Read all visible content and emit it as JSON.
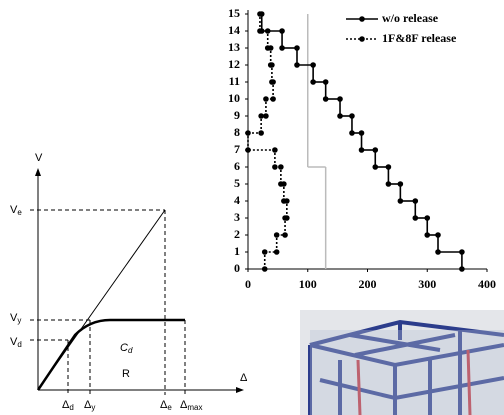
{
  "chart_data": {
    "type": "step-profile",
    "xlim": [
      0,
      400
    ],
    "xticks": [
      0,
      100,
      200,
      300,
      400
    ],
    "ylim": [
      0,
      15
    ],
    "yticks": [
      0,
      1,
      2,
      3,
      4,
      5,
      6,
      7,
      8,
      9,
      10,
      11,
      12,
      13,
      14,
      15
    ],
    "series": [
      {
        "name": "w/o release",
        "color": "#000000",
        "dash": "solid",
        "values": [
          358,
          318,
          300,
          280,
          255,
          235,
          213,
          190,
          174,
          154,
          130,
          109,
          82,
          57,
          23
        ]
      },
      {
        "name": "1F&8F release",
        "color": "#000000",
        "dash": "dotted",
        "values": [
          28,
          48,
          62,
          65,
          60,
          55,
          45,
          0,
          22,
          30,
          42,
          40,
          38,
          33,
          20
        ]
      },
      {
        "color": "#bbbbbb",
        "dash": "solid",
        "values": [
          130,
          130,
          130,
          130,
          130,
          130,
          100,
          100,
          100,
          100,
          100,
          100,
          100,
          100,
          100
        ]
      }
    ],
    "legend": "top-right"
  },
  "diagram": {
    "y_axis": "V",
    "x_axis": "Δ",
    "ve": {
      "main": "V",
      "sub": "e"
    },
    "vy": {
      "main": "V",
      "sub": "y"
    },
    "vd": {
      "main": "V",
      "sub": "d"
    },
    "cd": {
      "main": "C",
      "sub": "d"
    },
    "r": "R",
    "dd": {
      "main": "Δ",
      "sub": "d"
    },
    "dy": {
      "main": "Δ",
      "sub": "y"
    },
    "de": {
      "main": "Δ",
      "sub": "e"
    },
    "dmax": {
      "main": "Δ",
      "sub": "max"
    }
  }
}
